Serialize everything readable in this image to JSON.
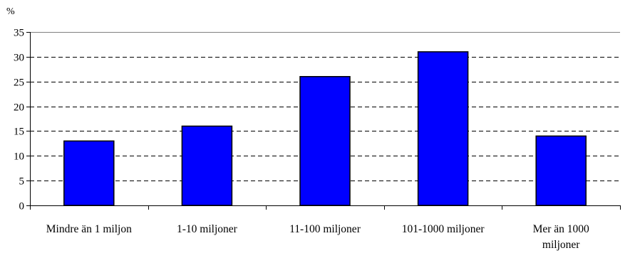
{
  "chart_data": {
    "type": "bar",
    "title": "",
    "xlabel": "",
    "ylabel": "%",
    "ylim": [
      0,
      35
    ],
    "yticks": [
      0,
      5,
      10,
      15,
      20,
      25,
      30,
      35
    ],
    "grid": true,
    "legend": "none",
    "categories": [
      "Mindre än 1 miljon",
      "1-10 miljoner",
      "11-100 miljoner",
      "101-1000 miljoner",
      "Mer än 1000 miljoner"
    ],
    "category_label_lines": [
      [
        "Mindre än 1 miljon"
      ],
      [
        "1-10 miljoner"
      ],
      [
        "11-100 miljoner"
      ],
      [
        "101-1000 miljoner"
      ],
      [
        "Mer än 1000",
        "miljoner"
      ]
    ],
    "values": [
      13,
      16,
      26,
      31,
      14
    ],
    "colors": {
      "bar_fill": "#0000FF",
      "bar_stroke": "#000000",
      "grid": "#000000",
      "axis": "#000000",
      "plot_border": "#808080"
    }
  }
}
